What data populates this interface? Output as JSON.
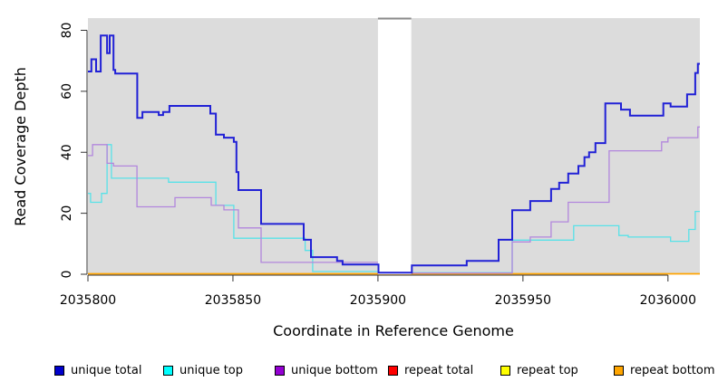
{
  "chart_data": {
    "type": "line",
    "subtype": "step-coverage",
    "title": "",
    "xlabel": "Coordinate in Reference Genome",
    "ylabel": "Read Coverage Depth",
    "xlim": [
      2035800,
      2036011
    ],
    "ylim": [
      0,
      84
    ],
    "x_ticks": [
      2035800,
      2035850,
      2035900,
      2035950,
      2036000
    ],
    "y_ticks": [
      0,
      20,
      40,
      60,
      80
    ],
    "grid": false,
    "plot_bg_color": "#dcdcdc",
    "gap_region": {
      "start": 2035900,
      "end": 2035911.5,
      "fill": "#ffffff",
      "cap_color": "#8a8a8a"
    },
    "series": [
      {
        "name": "repeat total",
        "color": "#ff0000",
        "line_width": 1.2,
        "points": [
          [
            2035800,
            0.15
          ]
        ]
      },
      {
        "name": "repeat top",
        "color": "#ffff00",
        "line_width": 1.2,
        "points": [
          [
            2035800,
            0.15
          ]
        ]
      },
      {
        "name": "repeat bottom",
        "color": "#ffa500",
        "line_width": 1.6,
        "points": [
          [
            2035800,
            0.15
          ]
        ]
      },
      {
        "name": "unique top",
        "color": "#58e2e8",
        "line_width": 1.3,
        "points": [
          [
            2035800,
            26.5
          ],
          [
            2035800.9,
            23.6
          ],
          [
            2035804.7,
            26.5
          ],
          [
            2035806.6,
            42.5
          ],
          [
            2035808.1,
            31.5
          ],
          [
            2035827.8,
            30.2
          ],
          [
            2035844.1,
            22.6
          ],
          [
            2035850.3,
            11.8
          ],
          [
            2035874.9,
            7.8
          ],
          [
            2035877.5,
            0.9
          ],
          [
            2035900.2,
            0.5
          ],
          [
            2035946.3,
            11.2
          ],
          [
            2035967.5,
            15.9
          ],
          [
            2035983.1,
            12.7
          ],
          [
            2035986.3,
            12.2
          ],
          [
            2036000.9,
            10.8
          ],
          [
            2036007.2,
            14.7
          ],
          [
            2036009.4,
            20.6
          ]
        ]
      },
      {
        "name": "unique bottom",
        "color": "#b286dd",
        "line_width": 1.3,
        "points": [
          [
            2035800,
            38.9
          ],
          [
            2035801.6,
            42.5
          ],
          [
            2035806.6,
            36.4
          ],
          [
            2035808.8,
            35.5
          ],
          [
            2035816.9,
            22.1
          ],
          [
            2035830,
            25.1
          ],
          [
            2035842.5,
            22.6
          ],
          [
            2035846.9,
            21.1
          ],
          [
            2035851.9,
            15.2
          ],
          [
            2035859.7,
            3.9
          ],
          [
            2035900.2,
            0.4
          ],
          [
            2035946.3,
            10.6
          ],
          [
            2035952.5,
            12.2
          ],
          [
            2035959.7,
            17.2
          ],
          [
            2035965.6,
            23.6
          ],
          [
            2035979.7,
            40.5
          ],
          [
            2035997.8,
            43.4
          ],
          [
            2036000,
            44.8
          ],
          [
            2036010.3,
            48.3
          ]
        ]
      },
      {
        "name": "unique total",
        "color": "#2121d6",
        "line_width": 2,
        "points": [
          [
            2035800,
            66.5
          ],
          [
            2035801.2,
            70.5
          ],
          [
            2035802.8,
            66.5
          ],
          [
            2035804.4,
            78.3
          ],
          [
            2035806.6,
            72.5
          ],
          [
            2035807.5,
            78.3
          ],
          [
            2035808.8,
            67
          ],
          [
            2035809.4,
            65.8
          ],
          [
            2035817,
            51.3
          ],
          [
            2035818.8,
            53.2
          ],
          [
            2035824.4,
            52.2
          ],
          [
            2035825.9,
            53.2
          ],
          [
            2035828.1,
            55.2
          ],
          [
            2035842.2,
            52.7
          ],
          [
            2035844.1,
            45.8
          ],
          [
            2035846.9,
            44.8
          ],
          [
            2035850.3,
            43.4
          ],
          [
            2035851.2,
            33.5
          ],
          [
            2035851.9,
            27.6
          ],
          [
            2035859.7,
            16.5
          ],
          [
            2035874.4,
            11.3
          ],
          [
            2035876.9,
            5.6
          ],
          [
            2035885.9,
            4.4
          ],
          [
            2035887.8,
            3.2
          ],
          [
            2035900.2,
            0.5
          ],
          [
            2035911.7,
            2.9
          ],
          [
            2035930.6,
            4.4
          ],
          [
            2035941.6,
            11.3
          ],
          [
            2035946.3,
            21
          ],
          [
            2035952.5,
            24
          ],
          [
            2035959.7,
            28
          ],
          [
            2035962.5,
            30
          ],
          [
            2035965.6,
            33
          ],
          [
            2035969.1,
            35.5
          ],
          [
            2035971.2,
            38.4
          ],
          [
            2035972.8,
            40
          ],
          [
            2035975,
            43
          ],
          [
            2035978.4,
            56
          ],
          [
            2035983.8,
            54
          ],
          [
            2035986.9,
            52
          ],
          [
            2035998.4,
            56
          ],
          [
            2036000.9,
            55
          ],
          [
            2036006.6,
            59
          ],
          [
            2036009.4,
            66
          ],
          [
            2036010.3,
            69
          ]
        ]
      }
    ],
    "legend_position": "bottom"
  },
  "legend": {
    "items": [
      {
        "label": "unique total",
        "color": "#0000cc"
      },
      {
        "label": "unique top",
        "color": "#00ffff"
      },
      {
        "label": "unique bottom",
        "color": "#9400d3"
      },
      {
        "label": "repeat total",
        "color": "#ff0000"
      },
      {
        "label": "repeat top",
        "color": "#ffff00"
      },
      {
        "label": "repeat bottom",
        "color": "#ffa500"
      }
    ]
  }
}
